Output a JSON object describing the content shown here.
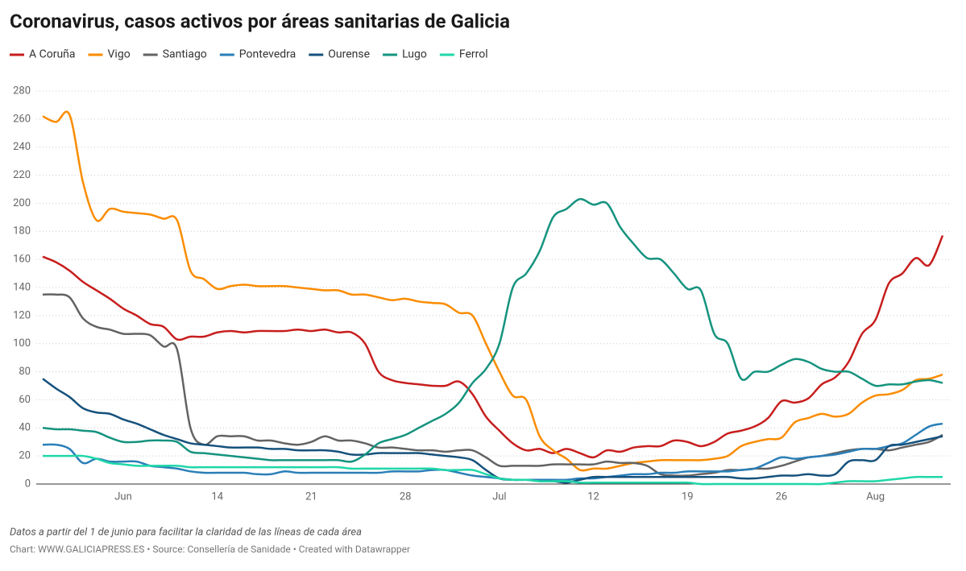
{
  "chart_data": {
    "type": "line",
    "title": "Coronavirus, casos activos por áreas sanitarias de Galicia",
    "note": "Datos a partir del 1 de junio para facilitar la claridad de las líneas de cada área",
    "credit": "Chart: WWW.GALICIAPRESS.ES • Source: Consellería de Sanidade • Created with Datawrapper",
    "categories": [
      null,
      null,
      null,
      null,
      null,
      null,
      "Jun",
      null,
      null,
      null,
      null,
      null,
      null,
      "14",
      null,
      null,
      null,
      null,
      null,
      null,
      "21",
      null,
      null,
      null,
      null,
      null,
      null,
      "28",
      null,
      null,
      null,
      null,
      null,
      null,
      "Jul",
      null,
      null,
      null,
      null,
      null,
      null,
      "12",
      null,
      null,
      null,
      null,
      null,
      null,
      "19",
      null,
      null,
      null,
      null,
      null,
      null,
      "26",
      null,
      null,
      null,
      null,
      null,
      null,
      "Aug",
      null,
      null,
      null,
      null,
      null
    ],
    "ylim": [
      0,
      280
    ],
    "yticks": [
      0,
      20,
      40,
      60,
      80,
      100,
      120,
      140,
      160,
      180,
      200,
      220,
      240,
      260,
      280
    ],
    "grid": true,
    "series": [
      {
        "name": "A Coruña",
        "color": "#c71e1d",
        "values": [
          162,
          158,
          152,
          144,
          138,
          132,
          125,
          120,
          114,
          112,
          103,
          105,
          105,
          108,
          109,
          108,
          109,
          109,
          109,
          110,
          109,
          110,
          108,
          108,
          100,
          80,
          74,
          72,
          71,
          70,
          70,
          73,
          64,
          48,
          38,
          29,
          24,
          25,
          22,
          25,
          22,
          19,
          24,
          23,
          26,
          27,
          27,
          31,
          30,
          27,
          30,
          36,
          38,
          41,
          47,
          59,
          58,
          61,
          71,
          76,
          87,
          107,
          117,
          143,
          150,
          161,
          156,
          177
        ]
      },
      {
        "name": "Vigo",
        "color": "#fa8c00",
        "values": [
          262,
          258,
          263,
          215,
          188,
          196,
          194,
          193,
          192,
          189,
          188,
          152,
          146,
          139,
          141,
          142,
          141,
          141,
          141,
          140,
          139,
          138,
          138,
          135,
          135,
          133,
          131,
          132,
          130,
          129,
          128,
          122,
          120,
          100,
          80,
          63,
          60,
          34,
          24,
          18,
          10,
          11,
          11,
          13,
          15,
          16,
          17,
          17,
          17,
          17,
          18,
          20,
          27,
          30,
          32,
          33,
          44,
          47,
          50,
          48,
          50,
          58,
          63,
          64,
          67,
          74,
          75,
          78
        ]
      },
      {
        "name": "Santiago",
        "color": "#636363",
        "values": [
          135,
          135,
          133,
          118,
          112,
          110,
          107,
          107,
          106,
          98,
          96,
          40,
          28,
          34,
          34,
          34,
          31,
          31,
          29,
          28,
          30,
          34,
          31,
          31,
          29,
          26,
          26,
          25,
          24,
          24,
          23,
          24,
          24,
          19,
          13,
          13,
          13,
          13,
          14,
          14,
          14,
          14,
          16,
          15,
          15,
          13,
          7,
          6,
          6,
          7,
          8,
          10,
          10,
          11,
          11,
          13,
          16,
          19,
          20,
          22,
          24,
          25,
          25,
          24,
          26,
          28,
          30,
          35
        ]
      },
      {
        "name": "Pontevedra",
        "color": "#2a7fb8",
        "values": [
          28,
          28,
          25,
          15,
          18,
          16,
          16,
          16,
          13,
          12,
          11,
          9,
          8,
          8,
          8,
          8,
          7,
          7,
          9,
          8,
          8,
          8,
          8,
          8,
          8,
          8,
          9,
          9,
          9,
          10,
          10,
          8,
          6,
          5,
          4,
          3,
          3,
          3,
          3,
          3,
          4,
          4,
          5,
          6,
          7,
          7,
          8,
          8,
          9,
          9,
          9,
          9,
          10,
          11,
          15,
          19,
          18,
          19,
          20,
          21,
          23,
          25,
          25,
          27,
          29,
          35,
          41,
          43
        ]
      },
      {
        "name": "Ourense",
        "color": "#15517c",
        "values": [
          75,
          68,
          62,
          54,
          51,
          50,
          46,
          43,
          39,
          35,
          32,
          29,
          28,
          27,
          26,
          26,
          26,
          25,
          25,
          24,
          24,
          24,
          23,
          21,
          21,
          22,
          22,
          22,
          22,
          21,
          20,
          19,
          17,
          10,
          4,
          3,
          3,
          2,
          2,
          1,
          3,
          5,
          5,
          5,
          5,
          5,
          5,
          5,
          5,
          5,
          5,
          5,
          4,
          4,
          5,
          6,
          6,
          7,
          6,
          7,
          16,
          17,
          17,
          27,
          28,
          30,
          32,
          34
        ]
      },
      {
        "name": "Lugo",
        "color": "#15937f",
        "values": [
          40,
          39,
          39,
          38,
          37,
          33,
          30,
          30,
          31,
          31,
          30,
          23,
          22,
          21,
          20,
          19,
          18,
          17,
          17,
          17,
          17,
          17,
          17,
          16,
          21,
          29,
          32,
          35,
          40,
          45,
          50,
          58,
          72,
          82,
          100,
          140,
          150,
          166,
          190,
          196,
          203,
          199,
          200,
          183,
          171,
          161,
          160,
          150,
          139,
          138,
          107,
          100,
          75,
          80,
          80,
          85,
          89,
          87,
          82,
          80,
          80,
          75,
          70,
          71,
          71,
          73,
          74,
          72
        ]
      },
      {
        "name": "Ferrol",
        "color": "#1fd7a8",
        "values": [
          20,
          20,
          20,
          20,
          18,
          15,
          14,
          13,
          13,
          13,
          13,
          12,
          12,
          12,
          12,
          12,
          12,
          12,
          12,
          12,
          12,
          12,
          12,
          11,
          11,
          11,
          11,
          11,
          11,
          11,
          10,
          10,
          10,
          7,
          4,
          3,
          3,
          2,
          2,
          2,
          1,
          1,
          1,
          1,
          1,
          1,
          1,
          1,
          1,
          0,
          0,
          0,
          0,
          0,
          0,
          0,
          0,
          0,
          0,
          1,
          2,
          2,
          2,
          3,
          4,
          5,
          5,
          5
        ]
      }
    ]
  }
}
